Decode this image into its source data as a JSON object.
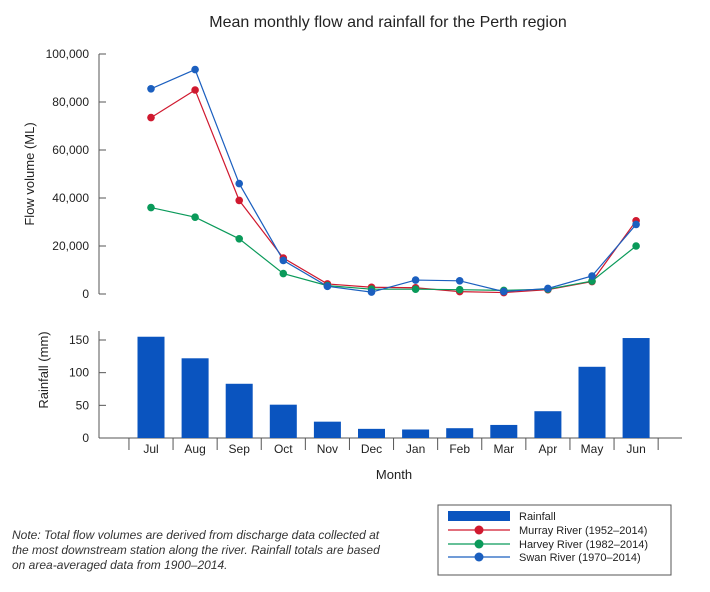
{
  "chart_data": {
    "type": "line+bar",
    "title": "Mean monthly flow and rainfall for the Perth region",
    "xlabel": "Month",
    "categories": [
      "Jul",
      "Aug",
      "Sep",
      "Oct",
      "Nov",
      "Dec",
      "Jan",
      "Feb",
      "Mar",
      "Apr",
      "May",
      "Jun"
    ],
    "flow": {
      "ylabel": "Flow volume (ML)",
      "ylim": [
        0,
        100000
      ],
      "ticks": [
        0,
        20000,
        40000,
        60000,
        80000,
        100000
      ],
      "tick_labels": [
        "0",
        "20,000",
        "40,000",
        "60,000",
        "80,000",
        "100,000"
      ],
      "series": [
        {
          "name": "Murray River (1952–2014)",
          "color": "#d0192f",
          "values": [
            73500,
            85000,
            39000,
            15000,
            4200,
            2800,
            2600,
            1000,
            600,
            1800,
            5200,
            30500
          ]
        },
        {
          "name": "Harvey River (1982–2014)",
          "color": "#0a9a5a",
          "values": [
            36000,
            32000,
            23000,
            8500,
            3500,
            2000,
            2000,
            1800,
            1500,
            2000,
            5400,
            20000
          ]
        },
        {
          "name": "Swan River (1970–2014)",
          "color": "#1b5fbf",
          "values": [
            85500,
            93500,
            46000,
            14000,
            3200,
            800,
            5800,
            5500,
            1000,
            2300,
            7500,
            29000
          ]
        }
      ]
    },
    "rainfall": {
      "ylabel": "Rainfall (mm)",
      "ylim": [
        0,
        160
      ],
      "ticks": [
        0,
        50,
        100,
        150
      ],
      "tick_labels": [
        "0",
        "50",
        "100",
        "150"
      ],
      "name": "Rainfall",
      "color": "#0a54bf",
      "values": [
        155,
        122,
        83,
        51,
        25,
        14,
        13,
        15,
        20,
        41,
        109,
        153
      ]
    },
    "legend_position": "bottom-right"
  },
  "note": "Note: Total flow volumes are derived from discharge data collected at the most downstream station along the river. Rainfall totals are based on area-averaged data from 1900–2014."
}
